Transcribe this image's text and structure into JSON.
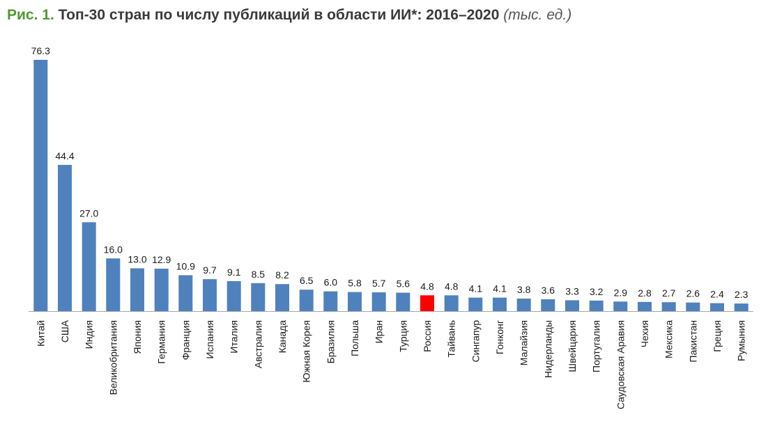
{
  "title": {
    "prefix": "Рис. 1.",
    "main": "Топ-30 стран по числу публикаций в области ИИ*: 2016–2020",
    "unit": "(тыс. ед.)"
  },
  "colors": {
    "bar": "#4f81bd",
    "highlight": "#ff0000",
    "title_prefix": "#4f9a2e"
  },
  "chart_data": {
    "type": "bar",
    "title": "Топ-30 стран по числу публикаций в области ИИ*: 2016–2020",
    "unit": "тыс. ед.",
    "xlabel": "",
    "ylabel": "",
    "ylim": [
      0,
      76.3
    ],
    "grid": false,
    "legend": "none",
    "highlight_category": "Россия",
    "categories": [
      "Китай",
      "США",
      "Индия",
      "Великобритания",
      "Япония",
      "Германия",
      "Франция",
      "Испания",
      "Италия",
      "Австралия",
      "Канада",
      "Южная Корея",
      "Бразилия",
      "Польша",
      "Иран",
      "Турция",
      "Россия",
      "Тайвань",
      "Сингапур",
      "Гонконг",
      "Малайзия",
      "Нидерланды",
      "Швейцария",
      "Португалия",
      "Саудовская Аравия",
      "Чехия",
      "Мексика",
      "Пакистан",
      "Греция",
      "Румыния"
    ],
    "values": [
      76.3,
      44.4,
      27.0,
      16.0,
      13.0,
      12.9,
      10.9,
      9.7,
      9.1,
      8.5,
      8.2,
      6.5,
      6.0,
      5.8,
      5.7,
      5.6,
      4.8,
      4.8,
      4.1,
      4.1,
      3.8,
      3.6,
      3.3,
      3.2,
      2.9,
      2.8,
      2.7,
      2.6,
      2.4,
      2.3
    ],
    "value_labels": [
      "76.3",
      "44.4",
      "27.0",
      "16.0",
      "13.0",
      "12.9",
      "10.9",
      "9.7",
      "9.1",
      "8.5",
      "8.2",
      "6.5",
      "6.0",
      "5.8",
      "5.7",
      "5.6",
      "4.8",
      "4.8",
      "4.1",
      "4.1",
      "3.8",
      "3.6",
      "3.3",
      "3.2",
      "2.9",
      "2.8",
      "2.7",
      "2.6",
      "2.4",
      "2.3"
    ]
  }
}
